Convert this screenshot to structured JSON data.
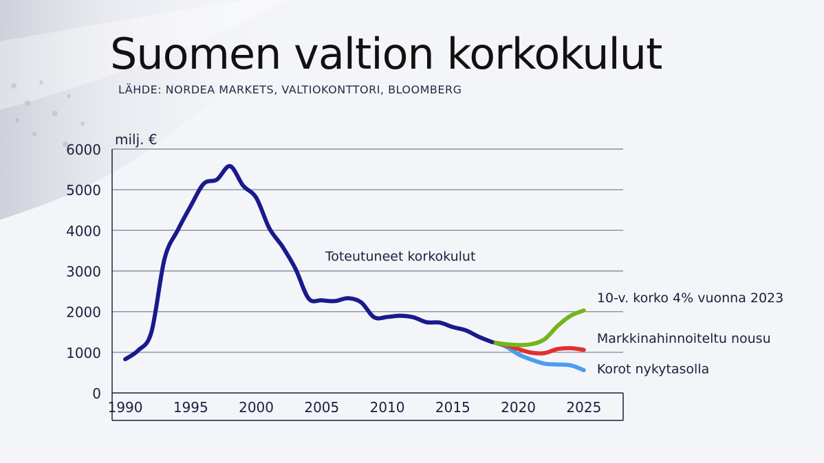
{
  "title": "Suomen valtion korkokulut",
  "subtitle": "LÄHDE: NORDEA MARKETS, VALTIOKONTTORI, BLOOMBERG",
  "chart_data": {
    "type": "line",
    "title": "Suomen valtion korkokulut",
    "ylabel": "milj. €",
    "xlabel": "",
    "xlim": [
      1989,
      2028
    ],
    "ylim": [
      0,
      6000
    ],
    "x_ticks": [
      1990,
      1995,
      2000,
      2005,
      2010,
      2015,
      2020,
      2025
    ],
    "y_ticks": [
      0,
      1000,
      2000,
      3000,
      4000,
      5000,
      6000
    ],
    "grid": "horizontal",
    "series": [
      {
        "name": "Toteutuneet korkokulut",
        "color": "#1a1a8c",
        "points": [
          [
            1990,
            830
          ],
          [
            1991,
            1050
          ],
          [
            1992,
            1500
          ],
          [
            1993,
            3300
          ],
          [
            1994,
            4000
          ],
          [
            1995,
            4600
          ],
          [
            1996,
            5150
          ],
          [
            1997,
            5250
          ],
          [
            1998,
            5580
          ],
          [
            1999,
            5100
          ],
          [
            2000,
            4800
          ],
          [
            2001,
            4050
          ],
          [
            2002,
            3600
          ],
          [
            2003,
            3050
          ],
          [
            2004,
            2320
          ],
          [
            2005,
            2280
          ],
          [
            2006,
            2260
          ],
          [
            2007,
            2330
          ],
          [
            2008,
            2230
          ],
          [
            2009,
            1860
          ],
          [
            2010,
            1870
          ],
          [
            2011,
            1900
          ],
          [
            2012,
            1860
          ],
          [
            2013,
            1740
          ],
          [
            2014,
            1730
          ],
          [
            2015,
            1620
          ],
          [
            2016,
            1540
          ],
          [
            2017,
            1380
          ],
          [
            2018,
            1250
          ]
        ]
      },
      {
        "name": "10-v. korko 4% vuonna 2023",
        "color": "#74b51c",
        "points": [
          [
            2018,
            1250
          ],
          [
            2019,
            1200
          ],
          [
            2020,
            1180
          ],
          [
            2021,
            1200
          ],
          [
            2022,
            1320
          ],
          [
            2023,
            1650
          ],
          [
            2024,
            1900
          ],
          [
            2025,
            2030
          ]
        ]
      },
      {
        "name": "Markkinahinnoiteltu nousu",
        "color": "#e03030",
        "points": [
          [
            2018,
            1250
          ],
          [
            2019,
            1180
          ],
          [
            2020,
            1080
          ],
          [
            2021,
            990
          ],
          [
            2022,
            980
          ],
          [
            2023,
            1080
          ],
          [
            2024,
            1100
          ],
          [
            2025,
            1060
          ]
        ]
      },
      {
        "name": "Korot nykytasolla",
        "color": "#4a9df0",
        "points": [
          [
            2018,
            1250
          ],
          [
            2019,
            1150
          ],
          [
            2020,
            950
          ],
          [
            2021,
            820
          ],
          [
            2022,
            720
          ],
          [
            2023,
            700
          ],
          [
            2024,
            680
          ],
          [
            2025,
            560
          ]
        ]
      }
    ],
    "annotations": [
      {
        "text": "Toteutuneet korkokulut",
        "x": 2011,
        "y": 3250
      },
      {
        "text": "10-v. korko 4% vuonna 2023",
        "x": 2026,
        "y": 2230
      },
      {
        "text": "Markkinahinnoiteltu nousu",
        "x": 2026,
        "y": 1230
      },
      {
        "text": "Korot nykytasolla",
        "x": 2026,
        "y": 480
      }
    ],
    "colors": {
      "grid": "#8c8c9c",
      "axis": "#1b1f3b",
      "text": "#1b1f3b"
    }
  }
}
